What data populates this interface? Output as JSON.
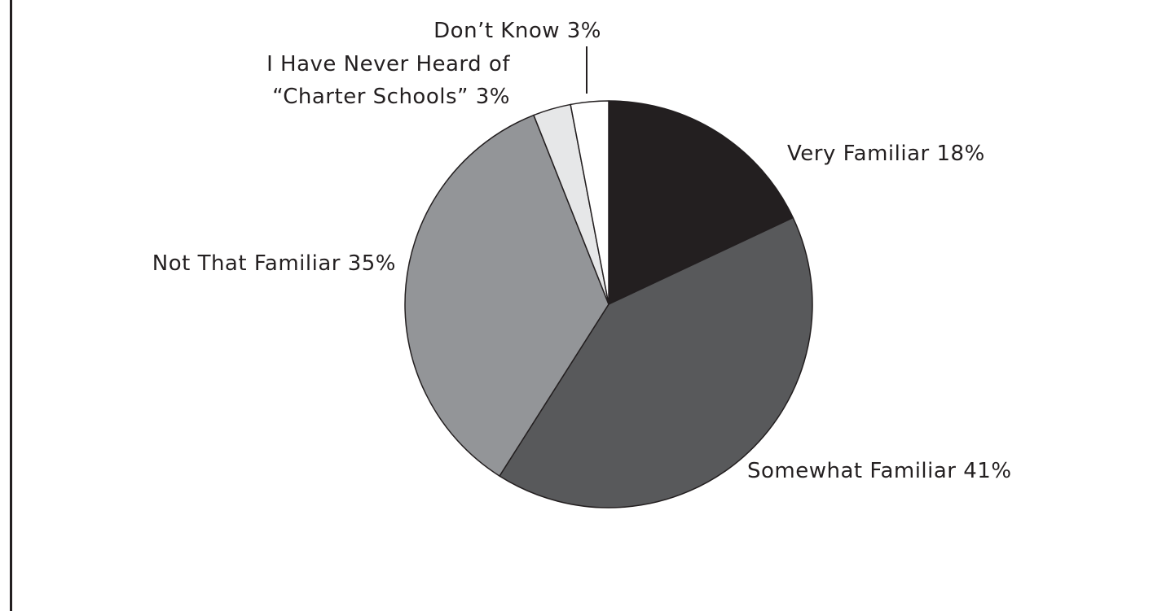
{
  "chart_data": {
    "type": "pie",
    "title": "",
    "start_angle_deg": 0,
    "direction": "clockwise",
    "slices": [
      {
        "label": "Very Familiar 18%",
        "value": 18,
        "color": "#231f20"
      },
      {
        "label": "Somewhat Familiar 41%",
        "value": 41,
        "color": "#58595b"
      },
      {
        "label": "Not That Familiar 35%",
        "value": 35,
        "color": "#939598"
      },
      {
        "label_lines": [
          "I Have Never Heard of",
          "“Charter Schools” 3%"
        ],
        "value": 3,
        "color": "#e6e7e8"
      },
      {
        "label": "Don’t Know 3%",
        "value": 3,
        "color": "#ffffff"
      }
    ],
    "outline_color": "#231f20"
  }
}
